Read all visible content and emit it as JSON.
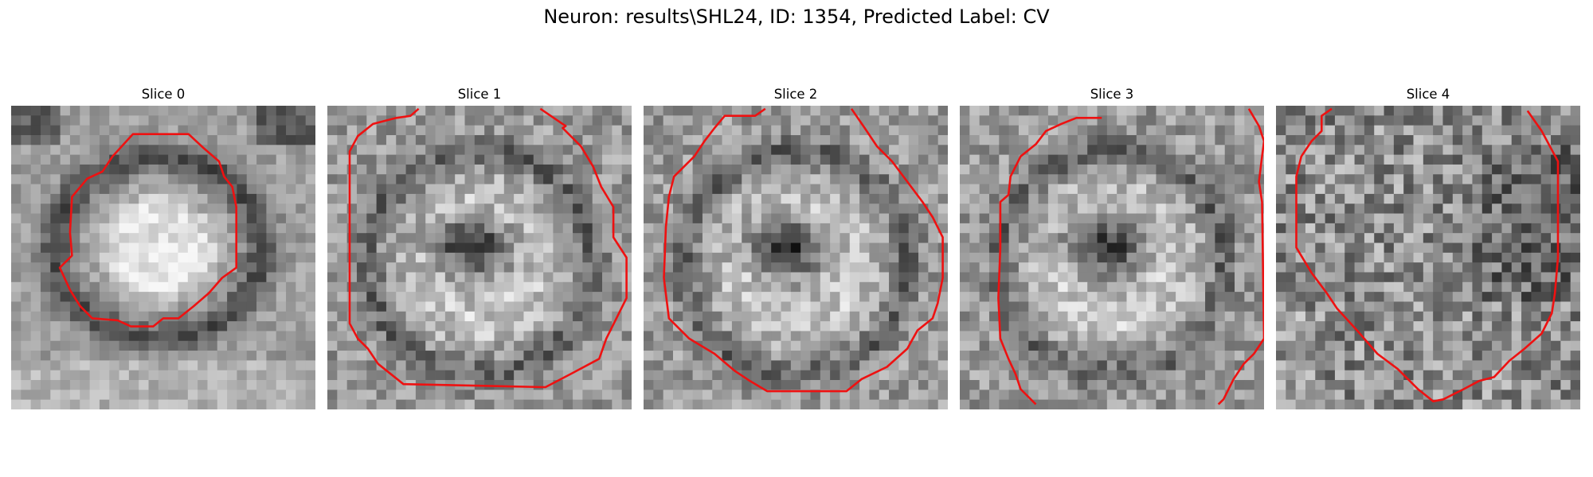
{
  "figure": {
    "title": "Neuron: results\\SHL24, ID: 1354, Predicted Label: CV"
  },
  "panels": [
    {
      "title": "Slice 0",
      "contour_color": "#ee1111",
      "texture": "bright-core-dark-rim",
      "seed": 11
    },
    {
      "title": "Slice 1",
      "contour_color": "#ee1111",
      "texture": "dark-center-bright-ring",
      "seed": 23
    },
    {
      "title": "Slice 2",
      "contour_color": "#ee1111",
      "texture": "dark-center-bright-ring",
      "seed": 37
    },
    {
      "title": "Slice 3",
      "contour_color": "#ee1111",
      "texture": "dark-center-bright-ring",
      "seed": 41
    },
    {
      "title": "Slice 4",
      "contour_color": "#ee1111",
      "texture": "noisy-mottled",
      "seed": 53
    }
  ]
}
